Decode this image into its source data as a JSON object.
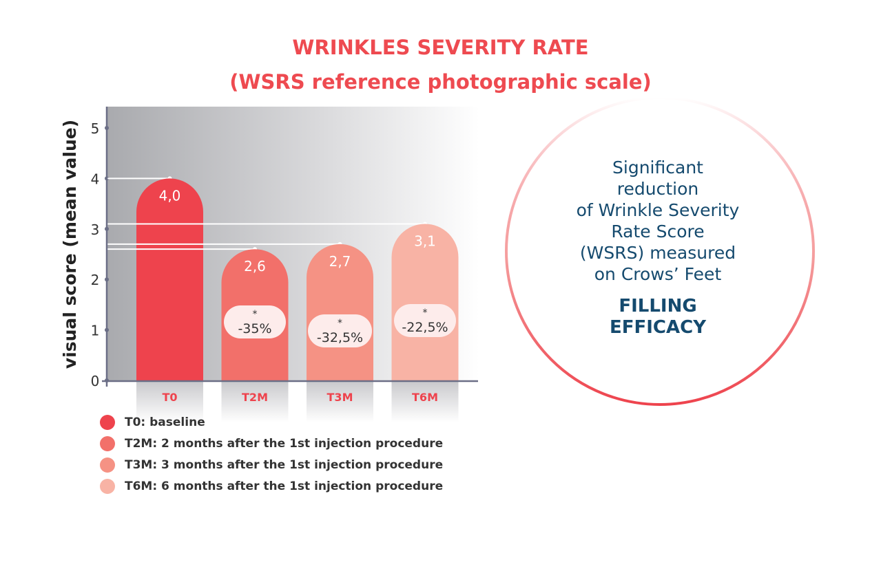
{
  "title": {
    "line1": "WRINKLES SEVERITY RATE",
    "line2": "(WSRS reference photographic scale)"
  },
  "chart_data": {
    "type": "bar",
    "categories": [
      "T0",
      "T2M",
      "T3M",
      "T6M"
    ],
    "values": [
      4.0,
      2.6,
      2.7,
      3.1
    ],
    "value_labels": [
      "4,0",
      "2,6",
      "2,7",
      "3,1"
    ],
    "change_labels": [
      "",
      "-35%",
      "-32,5%",
      "-22,5%"
    ],
    "significance_marker": "*",
    "ylabel": "visual score (mean value)",
    "ylim": [
      0,
      5
    ],
    "yticks": [
      "0",
      "1",
      "2",
      "3",
      "4",
      "5"
    ],
    "colors": [
      "#ee434d",
      "#f2706a",
      "#f59284",
      "#f8b3a5"
    ],
    "legend": [
      "T0: baseline",
      "T2M: 2 months after the 1st injection procedure",
      "T3M: 3 months after the 1st injection procedure",
      "T6M: 6 months after the 1st injection procedure"
    ]
  },
  "callout": {
    "lines": [
      "Significant",
      "reduction",
      "of Wrinkle Severity",
      "Rate Score",
      "(WSRS) measured",
      "on Crows’ Feet"
    ],
    "highlight": [
      "FILLING",
      "EFFICACY"
    ]
  }
}
